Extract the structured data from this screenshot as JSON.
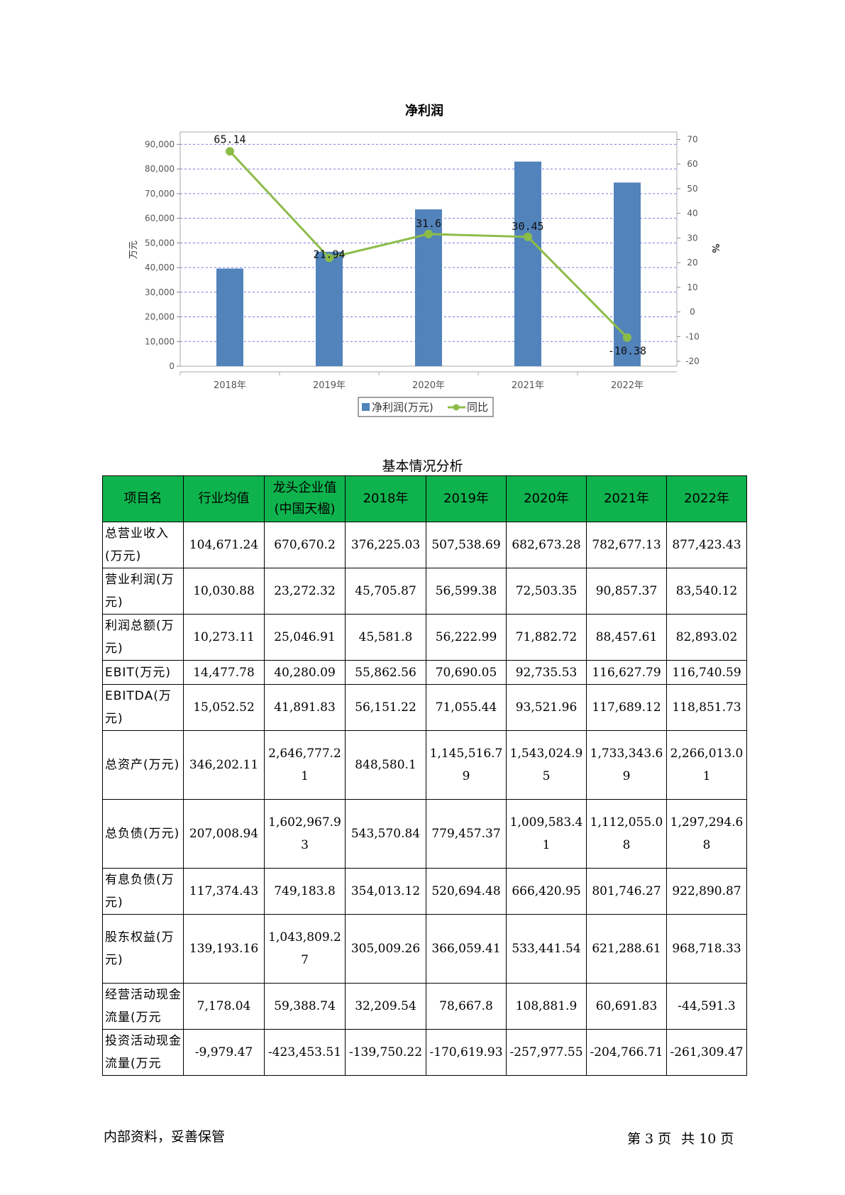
{
  "chart_data": {
    "type": "bar",
    "title": "净利润",
    "categories": [
      "2018年",
      "2019年",
      "2020年",
      "2021年",
      "2022年"
    ],
    "series": [
      {
        "name": "净利润(万元)",
        "type": "bar",
        "axis": "left",
        "color": "#5283bb",
        "values": [
          39600,
          46400,
          63600,
          83000,
          74500
        ]
      },
      {
        "name": "同比",
        "type": "line",
        "axis": "right",
        "color": "#8cbc48",
        "values": [
          65.14,
          21.94,
          31.6,
          30.45,
          -10.38
        ]
      }
    ],
    "data_labels": [
      "65.14",
      "21.94",
      "31.6",
      "30.45",
      "-10.38"
    ],
    "ylabel": "万元",
    "y2label": "%",
    "ylim": [
      0,
      95000
    ],
    "y2lim": [
      -22,
      73
    ],
    "yticks": [
      "0",
      "10,000",
      "20,000",
      "30,000",
      "40,000",
      "50,000",
      "60,000",
      "70,000",
      "80,000",
      "90,000"
    ],
    "y2ticks": [
      "-20",
      "-10",
      "0",
      "10",
      "20",
      "30",
      "40",
      "50",
      "60",
      "70"
    ],
    "grid": true,
    "legend_position": "bottom-center"
  },
  "table": {
    "caption": "基本情况分析",
    "headers": [
      "项目名",
      "行业均值",
      "龙头企业值(中国天楹)",
      "2018年",
      "2019年",
      "2020年",
      "2021年",
      "2022年"
    ],
    "rows": [
      {
        "name": "总营业收入(万元)",
        "values": [
          "104,671.24",
          "670,670.2",
          "376,225.03",
          "507,538.69",
          "682,673.28",
          "782,677.13",
          "877,423.43"
        ]
      },
      {
        "name": "营业利润(万元)",
        "values": [
          "10,030.88",
          "23,272.32",
          "45,705.87",
          "56,599.38",
          "72,503.35",
          "90,857.37",
          "83,540.12"
        ]
      },
      {
        "name": "利润总额(万元)",
        "values": [
          "10,273.11",
          "25,046.91",
          "45,581.8",
          "56,222.99",
          "71,882.72",
          "88,457.61",
          "82,893.02"
        ]
      },
      {
        "name": "EBIT(万元)",
        "values": [
          "14,477.78",
          "40,280.09",
          "55,862.56",
          "70,690.05",
          "92,735.53",
          "116,627.79",
          "116,740.59"
        ]
      },
      {
        "name": "EBITDA(万元)",
        "values": [
          "15,052.52",
          "41,891.83",
          "56,151.22",
          "71,055.44",
          "93,521.96",
          "117,689.12",
          "118,851.73"
        ]
      },
      {
        "name": "总资产(万元)",
        "values": [
          "346,202.11",
          "2,646,777.21",
          "848,580.1",
          "1,145,516.79",
          "1,543,024.95",
          "1,733,343.69",
          "2,266,013.01"
        ]
      },
      {
        "name": "总负债(万元)",
        "values": [
          "207,008.94",
          "1,602,967.93",
          "543,570.84",
          "779,457.37",
          "1,009,583.41",
          "1,112,055.08",
          "1,297,294.68"
        ]
      },
      {
        "name": "有息负债(万元)",
        "values": [
          "117,374.43",
          "749,183.8",
          "354,013.12",
          "520,694.48",
          "666,420.95",
          "801,746.27",
          "922,890.87"
        ]
      },
      {
        "name": "股东权益(万元)",
        "values": [
          "139,193.16",
          "1,043,809.27",
          "305,009.26",
          "366,059.41",
          "533,441.54",
          "621,288.61",
          "968,718.33"
        ]
      },
      {
        "name": "经营活动现金流量(万元",
        "values": [
          "7,178.04",
          "59,388.74",
          "32,209.54",
          "78,667.8",
          "108,881.9",
          "60,691.83",
          "-44,591.3"
        ]
      },
      {
        "name": "投资活动现金流量(万元",
        "values": [
          "-9,979.47",
          "-423,453.51",
          "-139,750.22",
          "-170,619.93",
          "-257,977.55",
          "-204,766.71",
          "-261,309.47"
        ]
      }
    ]
  },
  "footer": {
    "left": "内部资料，妥善保管",
    "page_prefix": "第",
    "page_num": "3",
    "page_mid": "页",
    "total_prefix": "共",
    "total_num": "10",
    "total_suffix": "页"
  }
}
